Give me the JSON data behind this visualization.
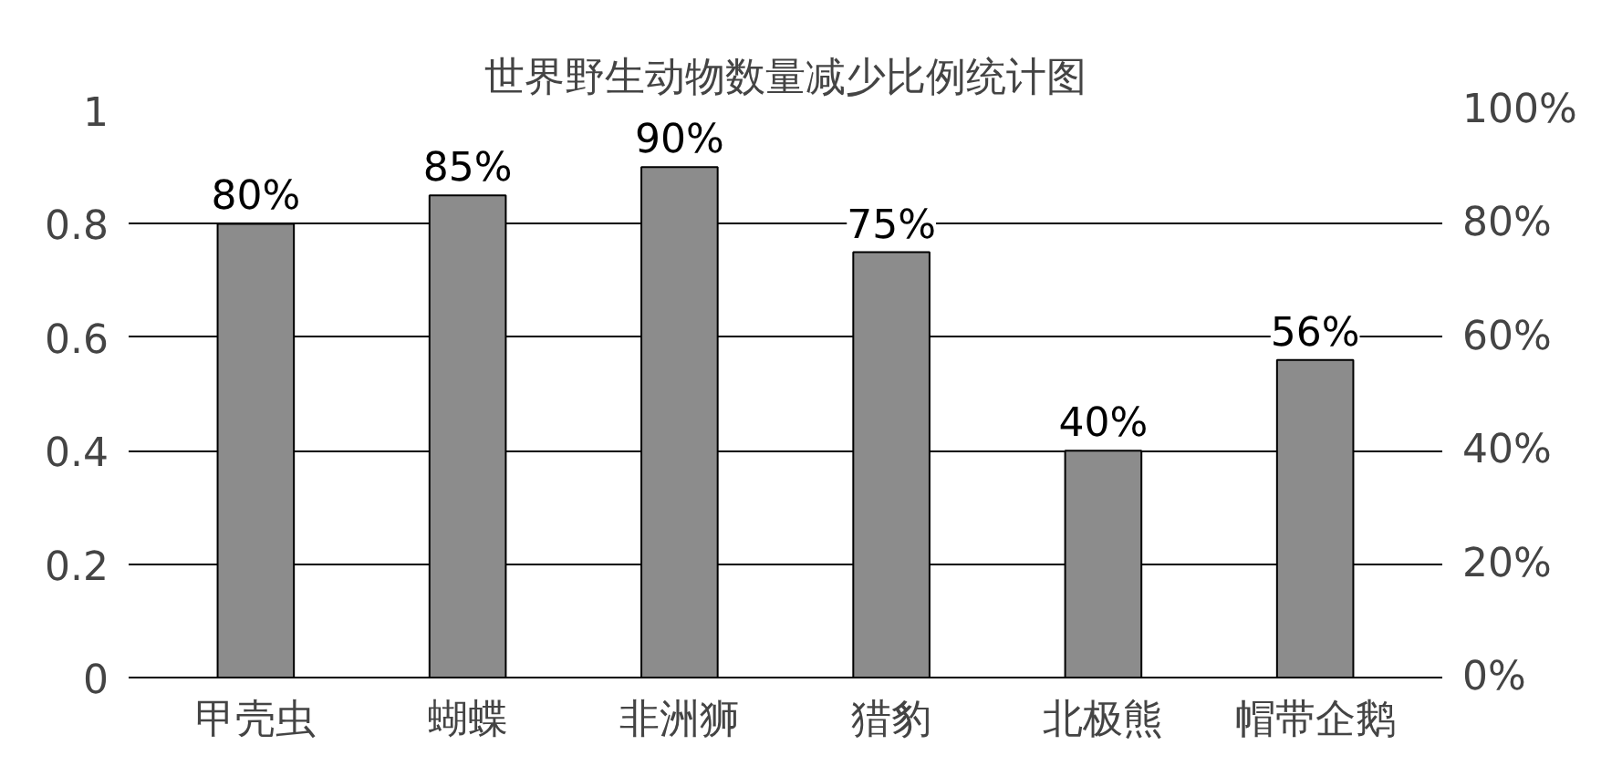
{
  "chart_data": {
    "type": "bar",
    "title": "世界野生动物数量减少比例统计图",
    "categories": [
      "甲壳虫",
      "蝴蝶",
      "非洲狮",
      "猎豹",
      "北极熊",
      "帽带企鹅"
    ],
    "values": [
      0.8,
      0.85,
      0.9,
      0.75,
      0.4,
      0.56
    ],
    "value_labels": [
      "80%",
      "85%",
      "90%",
      "75%",
      "40%",
      "56%"
    ],
    "color": "#8c8c8c",
    "ylim": [
      0,
      1
    ],
    "yticks": [
      0,
      0.2,
      0.4,
      0.6,
      0.8,
      1
    ],
    "y2lim": [
      0,
      100
    ],
    "y2ticks": [
      {
        "value": 0,
        "label": "0%"
      },
      {
        "value": 20,
        "label": "20%"
      },
      {
        "value": 40,
        "label": "40%"
      },
      {
        "value": 60,
        "label": "60%"
      },
      {
        "value": 80,
        "label": "80%"
      },
      {
        "value": 100,
        "label": "100%"
      }
    ],
    "grid": "y"
  }
}
